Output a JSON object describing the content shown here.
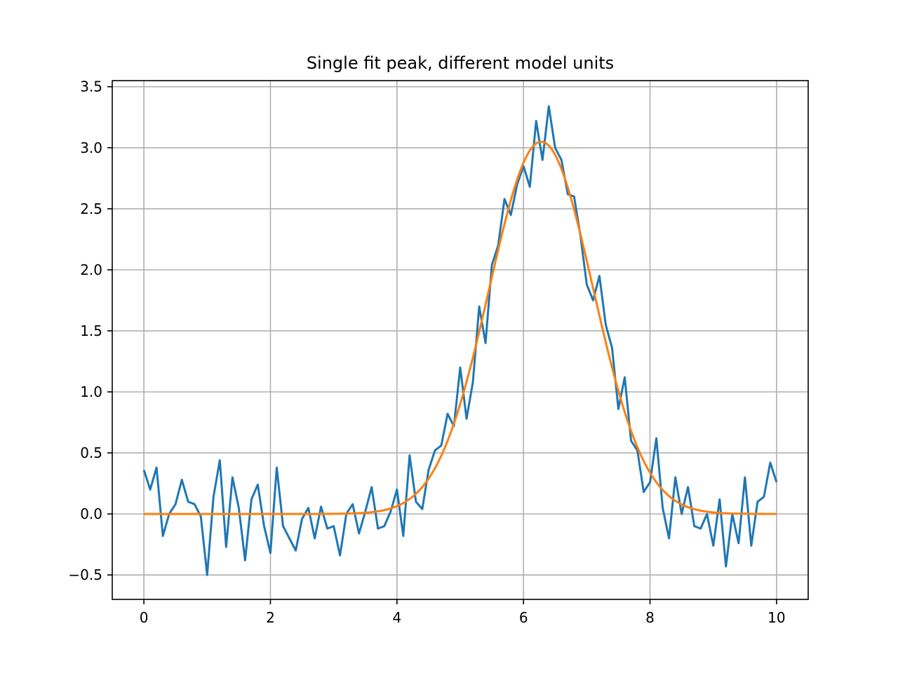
{
  "chart_data": {
    "type": "line",
    "title": "Single fit peak, different model units",
    "xlabel": "",
    "ylabel": "",
    "xlim": [
      -0.5,
      10.5
    ],
    "ylim": [
      -0.7,
      3.55
    ],
    "x_ticks": [
      0,
      2,
      4,
      6,
      8,
      10
    ],
    "x_tick_labels": [
      "0",
      "2",
      "4",
      "6",
      "8",
      "10"
    ],
    "y_ticks": [
      -0.5,
      0.0,
      0.5,
      1.0,
      1.5,
      2.0,
      2.5,
      3.0,
      3.5
    ],
    "y_tick_labels": [
      "−0.5",
      "0.0",
      "0.5",
      "1.0",
      "1.5",
      "2.0",
      "2.5",
      "3.0",
      "3.5"
    ],
    "grid": true,
    "series": [
      {
        "color": "#1f77b4",
        "x": [
          0.0,
          0.1,
          0.2,
          0.3,
          0.4,
          0.5,
          0.6,
          0.7,
          0.8,
          0.9,
          1.0,
          1.1,
          1.2,
          1.3,
          1.4,
          1.5,
          1.6,
          1.7,
          1.8,
          1.9,
          2.0,
          2.1,
          2.2,
          2.3,
          2.4,
          2.5,
          2.6,
          2.7,
          2.8,
          2.9,
          3.0,
          3.1,
          3.2,
          3.3,
          3.4,
          3.5,
          3.6,
          3.7,
          3.8,
          3.9,
          4.0,
          4.1,
          4.2,
          4.3,
          4.4,
          4.5,
          4.6,
          4.7,
          4.8,
          4.9,
          5.0,
          5.1,
          5.2,
          5.3,
          5.4,
          5.5,
          5.6,
          5.7,
          5.8,
          5.9,
          6.0,
          6.1,
          6.2,
          6.3,
          6.4,
          6.5,
          6.6,
          6.7,
          6.8,
          6.9,
          7.0,
          7.1,
          7.2,
          7.3,
          7.4,
          7.5,
          7.6,
          7.7,
          7.8,
          7.9,
          8.0,
          8.1,
          8.2,
          8.3,
          8.4,
          8.5,
          8.6,
          8.7,
          8.8,
          8.9,
          9.0,
          9.1,
          9.2,
          9.3,
          9.4,
          9.5,
          9.6,
          9.7,
          9.8,
          9.9,
          10.0
        ],
        "y": [
          0.36,
          0.2,
          0.38,
          -0.18,
          0.0,
          0.08,
          0.28,
          0.1,
          0.08,
          -0.02,
          -0.5,
          0.14,
          0.44,
          -0.27,
          0.3,
          0.05,
          -0.38,
          0.12,
          0.24,
          -0.1,
          -0.32,
          0.38,
          -0.1,
          -0.2,
          -0.3,
          -0.04,
          0.05,
          -0.2,
          0.06,
          -0.12,
          -0.1,
          -0.34,
          0.0,
          0.08,
          -0.16,
          0.02,
          0.22,
          -0.12,
          -0.1,
          0.02,
          0.2,
          -0.18,
          0.48,
          0.1,
          0.04,
          0.36,
          0.52,
          0.56,
          0.82,
          0.72,
          1.2,
          0.78,
          1.08,
          1.7,
          1.4,
          2.04,
          2.2,
          2.58,
          2.45,
          2.7,
          2.85,
          2.68,
          3.22,
          2.9,
          3.34,
          3.0,
          2.9,
          2.62,
          2.6,
          2.28,
          1.88,
          1.75,
          1.95,
          1.55,
          1.36,
          0.86,
          1.12,
          0.6,
          0.52,
          0.18,
          0.26,
          0.62,
          0.05,
          -0.2,
          0.3,
          0.0,
          0.22,
          -0.1,
          -0.12,
          0.0,
          -0.26,
          0.12,
          -0.43,
          0.0,
          -0.24,
          0.3,
          -0.26,
          0.1,
          0.14,
          0.42,
          0.26
        ]
      },
      {
        "color": "#ff7f0e",
        "model": "gaussian",
        "amplitude": 3.05,
        "mean": 6.28,
        "stddev": 0.82
      }
    ]
  }
}
